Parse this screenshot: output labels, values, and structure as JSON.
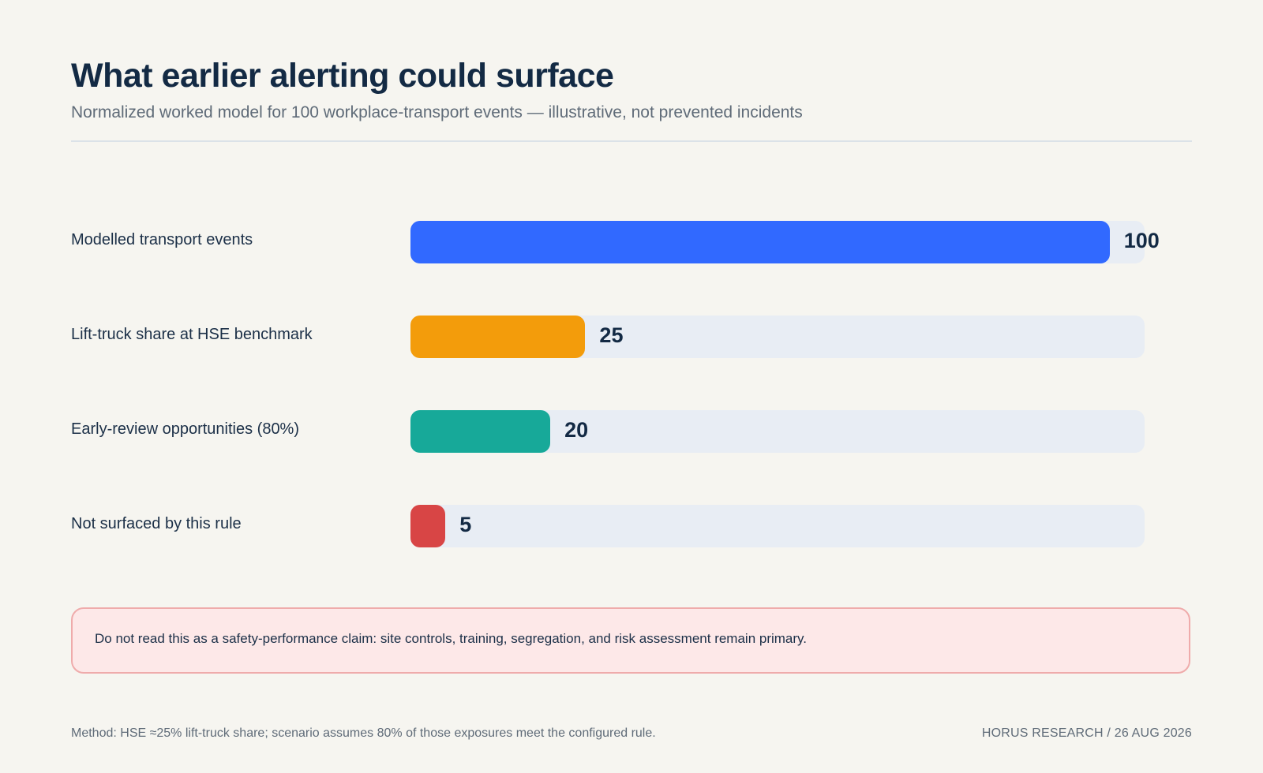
{
  "header": {
    "title": "What earlier alerting could surface",
    "subtitle": "Normalized worked model for 100 workplace-transport events — illustrative, not prevented incidents"
  },
  "chart_data": {
    "type": "bar",
    "orientation": "horizontal",
    "title": "What earlier alerting could surface",
    "subtitle": "Normalized worked model for 100 workplace-transport events — illustrative, not prevented incidents",
    "xlabel": "",
    "ylabel": "",
    "xlim": [
      0,
      105
    ],
    "grid": false,
    "categories": [
      "Modelled transport events",
      "Lift-truck share at HSE benchmark",
      "Early-review opportunities (80%)",
      "Not surfaced by this rule"
    ],
    "values": [
      100,
      25,
      20,
      5
    ],
    "colors": [
      "#3169ff",
      "#f39c0b",
      "#17a999",
      "#d84545"
    ],
    "track_color": "#e8edf4"
  },
  "callout": {
    "text": "Do not read this as a safety-performance claim: site controls, training, segregation, and risk assessment remain primary."
  },
  "footer": {
    "method": "Method: HSE ≈25% lift-truck share; scenario assumes 80% of those exposures meet the configured rule.",
    "source": "HORUS RESEARCH / 26 AUG 2026"
  }
}
